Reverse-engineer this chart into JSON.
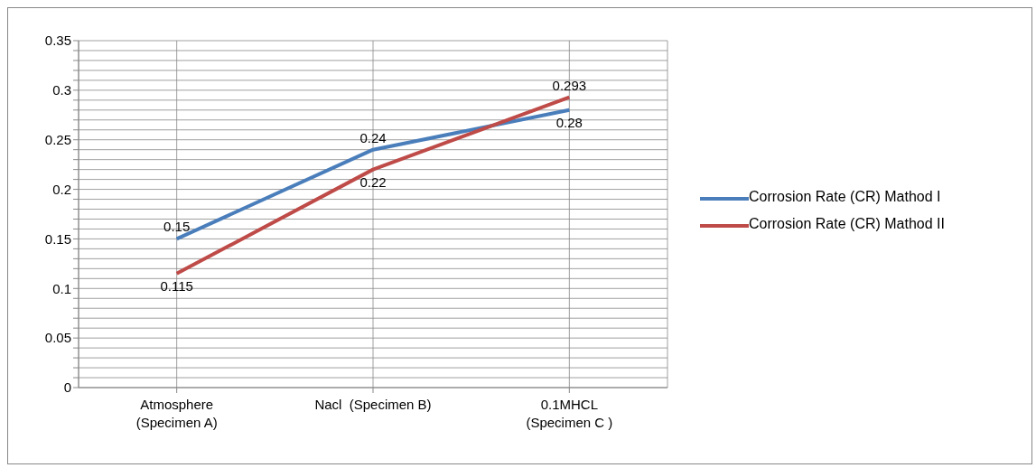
{
  "chart_data": {
    "type": "line",
    "categories": [
      "Atmosphere (Specimen A)",
      "Nacl  (Specimen B)",
      "0.1MHCL (Specimen C )"
    ],
    "series": [
      {
        "name": "Corrosion Rate (CR) Mathod I",
        "color": "#4a7ebb",
        "values": [
          0.15,
          0.24,
          0.28
        ]
      },
      {
        "name": "Corrosion Rate (CR) Mathod II",
        "color": "#be4b48",
        "values": [
          0.115,
          0.22,
          0.293
        ]
      }
    ],
    "ylim": [
      0,
      0.35
    ],
    "yticks": [
      0,
      {
        "value": 0.01,
        "label": null
      },
      {
        "value": 0.02,
        "label": null
      },
      {
        "value": 0.03,
        "label": null
      },
      {
        "value": 0.04,
        "label": null
      },
      0.05,
      {
        "value": 0.06,
        "label": null
      },
      {
        "value": 0.07,
        "label": null
      },
      {
        "value": 0.08,
        "label": null
      },
      {
        "value": 0.09,
        "label": null
      },
      0.1,
      {
        "value": 0.11,
        "label": null
      },
      {
        "value": 0.12,
        "label": null
      },
      {
        "value": 0.13,
        "label": null
      },
      {
        "value": 0.14,
        "label": null
      },
      0.15,
      {
        "value": 0.16,
        "label": null
      },
      {
        "value": 0.17,
        "label": null
      },
      {
        "value": 0.18,
        "label": null
      },
      {
        "value": 0.19,
        "label": null
      },
      0.2,
      {
        "value": 0.21,
        "label": null
      },
      {
        "value": 0.22,
        "label": null
      },
      {
        "value": 0.23,
        "label": null
      },
      {
        "value": 0.24,
        "label": null
      },
      0.25,
      {
        "value": 0.26,
        "label": null
      },
      {
        "value": 0.27,
        "label": null
      },
      {
        "value": 0.28,
        "label": null
      },
      {
        "value": 0.29,
        "label": null
      },
      0.3,
      {
        "value": 0.31,
        "label": null
      },
      {
        "value": 0.32,
        "label": null
      },
      {
        "value": 0.33,
        "label": null
      },
      {
        "value": 0.34,
        "label": null
      },
      0.35
    ],
    "grid": true,
    "legend": "right",
    "marker": "none",
    "line_style": "solid",
    "data_labels": true
  }
}
